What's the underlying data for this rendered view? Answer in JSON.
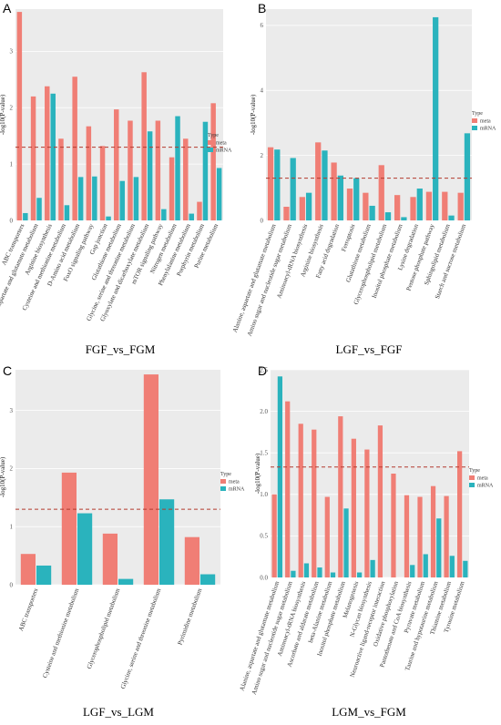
{
  "colors": {
    "meta": "#f07e75",
    "mRNA": "#2ab3bd",
    "panel_bg": "#ebebeb",
    "grid": "#ffffff",
    "threshold": "#b33a2e"
  },
  "legend": {
    "title": "Type",
    "items": [
      "meta",
      "mRNA"
    ]
  },
  "chart_data": [
    {
      "type": "bar",
      "panel": "A",
      "caption": "FGF_vs_FGM",
      "ylabel": "-log10(P-value)",
      "ylim": [
        0,
        3.75
      ],
      "yticks": [
        0,
        1,
        2,
        3
      ],
      "threshold": 1.3,
      "categories": [
        "ABC transporters",
        "Alanine, aspartate and glutamate metabolism",
        "Arginine biosynthesis",
        "Cysteine and methionine metabolism",
        "D-Amino acid metabolism",
        "FoxO signaling pathway",
        "Gap junction",
        "Glutathione metabolism",
        "Glycine, serine and threonine metabolism",
        "Glyoxylate and dicarboxylate metabolism",
        "mTOR signaling pathway",
        "Nitrogen metabolism",
        "Phenylalanine metabolism",
        "Porphyrin metabolism",
        "Purine metabolism"
      ],
      "series": [
        {
          "name": "meta",
          "values": [
            3.7,
            2.2,
            2.38,
            1.45,
            2.55,
            1.67,
            1.32,
            1.97,
            1.77,
            2.63,
            1.77,
            1.12,
            1.45,
            0.33,
            2.08
          ]
        },
        {
          "name": "mRNA",
          "values": [
            0.13,
            0.4,
            2.25,
            0.27,
            0.77,
            0.78,
            0.07,
            0.7,
            0.77,
            1.58,
            0.2,
            1.85,
            0.12,
            1.75,
            0.93
          ]
        }
      ]
    },
    {
      "type": "bar",
      "panel": "B",
      "caption": "LGF_vs_FGF",
      "ylabel": "-log10(P-value)",
      "ylim": [
        0,
        6.5
      ],
      "yticks": [
        0,
        2,
        4,
        6
      ],
      "threshold": 1.3,
      "categories": [
        "Alanine, aspartate and glutamate metabolism",
        "Amino sugar and nucleotide sugar metabolism",
        "Aminoacyl-tRNA biosynthesis",
        "Arginine biosynthesis",
        "Fatty acid degradation",
        "Ferroptosis",
        "Glutathione metabolism",
        "Glycerophospholipid metabolism",
        "Inositol phosphate metabolism",
        "Lysine degradation",
        "Pentose phosphate pathway",
        "Sphingolipid metabolism",
        "Starch and sucrose metabolism"
      ],
      "series": [
        {
          "name": "meta",
          "values": [
            2.25,
            0.42,
            0.72,
            2.4,
            1.78,
            0.98,
            0.85,
            1.7,
            0.78,
            0.72,
            0.88,
            0.88,
            0.85
          ]
        },
        {
          "name": "mRNA",
          "values": [
            2.18,
            1.92,
            0.85,
            2.15,
            1.38,
            1.3,
            0.45,
            0.25,
            0.1,
            0.98,
            6.25,
            0.15,
            2.68
          ]
        }
      ]
    },
    {
      "type": "bar",
      "panel": "C",
      "caption": "LGF_vs_LGM",
      "ylabel": "-log10(P-value)",
      "ylim": [
        0,
        3.7
      ],
      "yticks": [
        0,
        1,
        2,
        3
      ],
      "threshold": 1.3,
      "categories": [
        "ABC transporters",
        "Cysteine and methionine metabolism",
        "Glycerophospholipid metabolism",
        "Glycine, serine and threonine metabolism",
        "Pyrimidine metabolism"
      ],
      "series": [
        {
          "name": "meta",
          "values": [
            0.53,
            1.93,
            0.88,
            3.62,
            0.82
          ]
        },
        {
          "name": "mRNA",
          "values": [
            0.33,
            1.23,
            0.1,
            1.47,
            0.18
          ]
        }
      ]
    },
    {
      "type": "bar",
      "panel": "D",
      "caption": "LGM_vs_FGM",
      "ylabel": "-log10(P-value)",
      "ylim": [
        0,
        2.5
      ],
      "yticks": [
        0.0,
        0.5,
        1.0,
        1.5,
        2.0,
        2.5
      ],
      "threshold": 1.33,
      "categories": [
        "Alanine, aspartate and glutamate metabolism",
        "Amino sugar and nucleotide sugar metabolism",
        "Aminoacyl-tRNA biosynthesis",
        "Ascorbate and aldarate metabolism",
        "beta-Alanine metabolism",
        "Inositol phosphate metabolism",
        "Melanogenesis",
        "N-Glycan biosynthesis",
        "Neuroactive ligand-receptor interaction",
        "Oxidative phosphorylation",
        "Pantothenate and CoA biosynthesis",
        "Pyruvate metabolism",
        "Taurine and hypotaurine metabolism",
        "Thiamine metabolism",
        "Tyrosine metabolism"
      ],
      "series": [
        {
          "name": "meta",
          "values": [
            1.0,
            2.12,
            1.85,
            1.78,
            0.97,
            1.94,
            1.67,
            1.54,
            1.83,
            1.25,
            0.99,
            0.97,
            1.1,
            0.98,
            1.52
          ]
        },
        {
          "name": "mRNA",
          "values": [
            2.42,
            0.08,
            0.17,
            0.12,
            0.06,
            0.83,
            0.06,
            0.21,
            0.0,
            0.0,
            0.15,
            0.28,
            0.71,
            0.26,
            0.2
          ]
        }
      ]
    }
  ]
}
